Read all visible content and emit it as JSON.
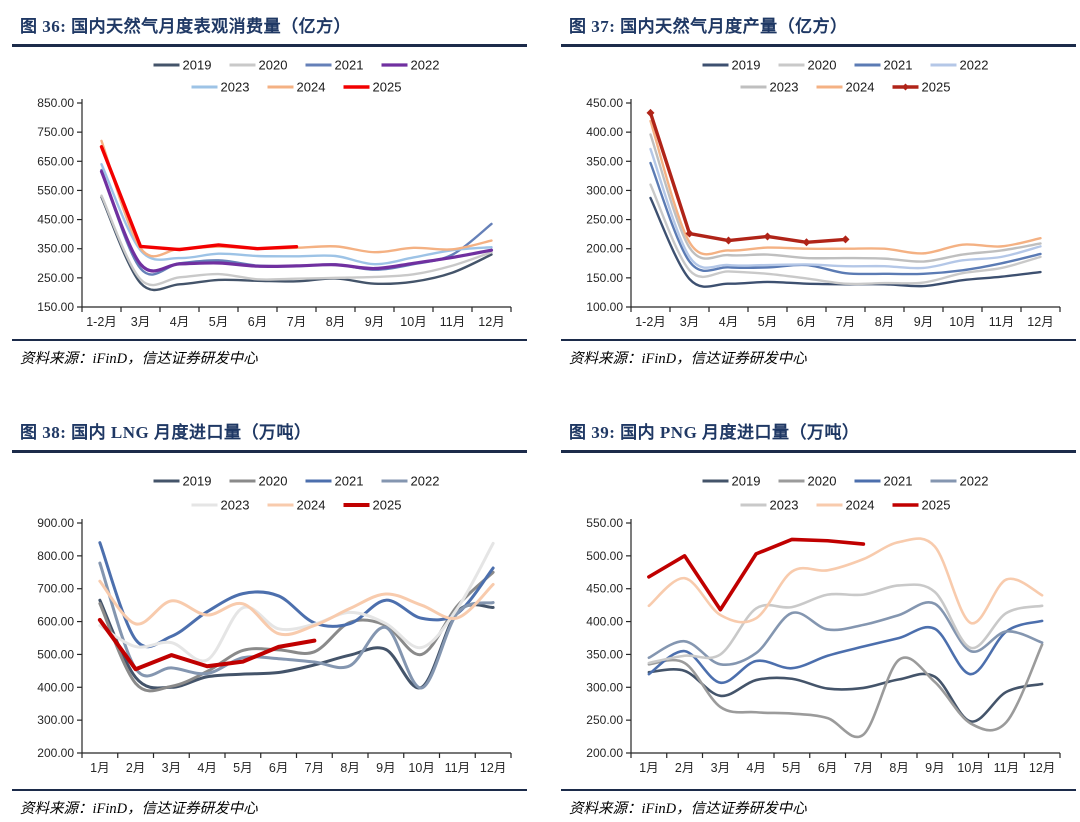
{
  "theme": {
    "background": "#FFFFFF",
    "title_color": "#1F3864",
    "rule_color": "#1C2B4A",
    "axis_color": "#262626",
    "legend_text_color": "#1A1A1A"
  },
  "chart_data": [
    {
      "id": "fig36",
      "type": "line",
      "title": "图 36: 国内天然气月度表观消费量（亿方）",
      "source": "资料来源：iFinD，信达证券研发中心",
      "xlabel": "",
      "ylabel": "",
      "ylim": [
        150,
        850
      ],
      "ytick_step": 100,
      "grid": false,
      "legend_position": "top",
      "categories": [
        "1-2月",
        "3月",
        "4月",
        "5月",
        "6月",
        "7月",
        "8月",
        "9月",
        "10月",
        "11月",
        "12月"
      ],
      "series": [
        {
          "name": "2019",
          "color": "#44546A",
          "width": 2.4,
          "smooth": true,
          "values": [
            527,
            232,
            228,
            243,
            240,
            238,
            248,
            230,
            237,
            268,
            330
          ]
        },
        {
          "name": "2020",
          "color": "#C9C9C9",
          "width": 2.4,
          "smooth": true,
          "values": [
            532,
            245,
            252,
            263,
            245,
            247,
            250,
            253,
            262,
            292,
            338
          ]
        },
        {
          "name": "2021",
          "color": "#6580B8",
          "width": 2.4,
          "smooth": true,
          "values": [
            620,
            282,
            300,
            310,
            292,
            290,
            296,
            278,
            297,
            330,
            435
          ]
        },
        {
          "name": "2022",
          "color": "#7030A0",
          "width": 3.2,
          "smooth": true,
          "values": [
            615,
            297,
            298,
            301,
            290,
            291,
            295,
            282,
            300,
            320,
            345
          ]
        },
        {
          "name": "2023",
          "color": "#9DC3E6",
          "width": 2.4,
          "smooth": true,
          "values": [
            640,
            345,
            318,
            333,
            325,
            324,
            325,
            297,
            320,
            345,
            355
          ]
        },
        {
          "name": "2024",
          "color": "#F4B183",
          "width": 2.4,
          "smooth": true,
          "values": [
            720,
            352,
            350,
            357,
            350,
            353,
            358,
            338,
            353,
            348,
            378
          ]
        },
        {
          "name": "2025",
          "color": "#F20000",
          "width": 3.4,
          "smooth": false,
          "values": [
            700,
            358,
            347,
            363,
            350,
            357
          ]
        }
      ]
    },
    {
      "id": "fig37",
      "type": "line",
      "title": "图 37: 国内天然气月度产量（亿方）",
      "source": "资料来源：iFinD，信达证券研发中心",
      "xlabel": "",
      "ylabel": "",
      "ylim": [
        100,
        450
      ],
      "ytick_step": 50,
      "grid": false,
      "legend_position": "top",
      "categories": [
        "1-2月",
        "3月",
        "4月",
        "5月",
        "6月",
        "7月",
        "8月",
        "9月",
        "10月",
        "11月",
        "12月"
      ],
      "series": [
        {
          "name": "2019",
          "color": "#3D5070",
          "width": 2.4,
          "smooth": true,
          "values": [
            287,
            148,
            140,
            143,
            140,
            139,
            139,
            136,
            146,
            152,
            160
          ]
        },
        {
          "name": "2020",
          "color": "#C9C9C9",
          "width": 2.4,
          "smooth": true,
          "values": [
            310,
            163,
            161,
            157,
            149,
            140,
            141,
            142,
            158,
            167,
            186
          ]
        },
        {
          "name": "2021",
          "color": "#5B7BB4",
          "width": 2.4,
          "smooth": true,
          "values": [
            347,
            178,
            168,
            168,
            172,
            158,
            157,
            157,
            163,
            175,
            191
          ]
        },
        {
          "name": "2022",
          "color": "#B4C7E7",
          "width": 2.4,
          "smooth": true,
          "values": [
            371,
            186,
            172,
            172,
            173,
            170,
            170,
            167,
            180,
            186,
            204
          ]
        },
        {
          "name": "2023",
          "color": "#BFBFBF",
          "width": 2.4,
          "smooth": true,
          "values": [
            396,
            202,
            189,
            190,
            184,
            184,
            183,
            178,
            190,
            197,
            209
          ]
        },
        {
          "name": "2024",
          "color": "#F4B183",
          "width": 2.4,
          "smooth": true,
          "values": [
            419,
            211,
            197,
            202,
            200,
            200,
            200,
            192,
            207,
            204,
            218
          ]
        },
        {
          "name": "2025",
          "color": "#B02418",
          "width": 3.4,
          "smooth": false,
          "marker": "diamond",
          "values": [
            433,
            226,
            214,
            221,
            211,
            216
          ]
        }
      ]
    },
    {
      "id": "fig38",
      "type": "line",
      "title": "图 38: 国内 LNG 月度进口量（万吨）",
      "source": "资料来源：iFinD，信达证券研发中心",
      "xlabel": "",
      "ylabel": "",
      "ylim": [
        200,
        900
      ],
      "ytick_step": 100,
      "grid": false,
      "legend_position": "top",
      "categories": [
        "1月",
        "2月",
        "3月",
        "4月",
        "5月",
        "6月",
        "7月",
        "8月",
        "9月",
        "10月",
        "11月",
        "12月"
      ],
      "series": [
        {
          "name": "2019",
          "color": "#44546A",
          "width": 3,
          "smooth": true,
          "values": [
            665,
            430,
            400,
            432,
            440,
            445,
            468,
            498,
            515,
            400,
            630,
            643
          ]
        },
        {
          "name": "2020",
          "color": "#8A8A8A",
          "width": 3,
          "smooth": true,
          "values": [
            655,
            412,
            403,
            448,
            512,
            514,
            508,
            598,
            588,
            500,
            648,
            750
          ]
        },
        {
          "name": "2021",
          "color": "#4C6FAD",
          "width": 3,
          "smooth": true,
          "values": [
            840,
            545,
            555,
            630,
            685,
            678,
            596,
            594,
            665,
            610,
            625,
            763
          ]
        },
        {
          "name": "2022",
          "color": "#8496B0",
          "width": 3,
          "smooth": true,
          "values": [
            778,
            457,
            459,
            442,
            490,
            487,
            477,
            466,
            582,
            398,
            626,
            658
          ]
        },
        {
          "name": "2023",
          "color": "#E5E5E5",
          "width": 3,
          "smooth": true,
          "values": [
            588,
            524,
            536,
            483,
            642,
            578,
            592,
            628,
            594,
            521,
            640,
            838
          ]
        },
        {
          "name": "2024",
          "color": "#F8CBAD",
          "width": 3,
          "smooth": true,
          "values": [
            723,
            593,
            663,
            620,
            654,
            563,
            588,
            640,
            684,
            650,
            611,
            713
          ]
        },
        {
          "name": "2025",
          "color": "#C00000",
          "width": 4,
          "smooth": false,
          "values": [
            605,
            455,
            498,
            464,
            478,
            523,
            542
          ]
        }
      ]
    },
    {
      "id": "fig39",
      "type": "line",
      "title": "图 39: 国内 PNG 月度进口量（万吨）",
      "source": "资料来源：iFinD，信达证券研发中心",
      "xlabel": "",
      "ylabel": "",
      "ylim": [
        200,
        550
      ],
      "ytick_step": 50,
      "grid": false,
      "legend_position": "top",
      "categories": [
        "1月",
        "2月",
        "3月",
        "4月",
        "5月",
        "6月",
        "7月",
        "8月",
        "9月",
        "10月",
        "11月",
        "12月"
      ],
      "series": [
        {
          "name": "2019",
          "color": "#44546A",
          "width": 2.6,
          "smooth": true,
          "values": [
            323,
            325,
            287,
            311,
            313,
            298,
            299,
            312,
            316,
            248,
            293,
            305
          ]
        },
        {
          "name": "2020",
          "color": "#9B9B9B",
          "width": 2.6,
          "smooth": true,
          "values": [
            335,
            337,
            270,
            262,
            260,
            253,
            228,
            342,
            308,
            245,
            247,
            365
          ]
        },
        {
          "name": "2021",
          "color": "#4C6FAD",
          "width": 2.6,
          "smooth": true,
          "values": [
            320,
            355,
            307,
            340,
            329,
            348,
            362,
            375,
            389,
            320,
            385,
            401
          ]
        },
        {
          "name": "2022",
          "color": "#8496B0",
          "width": 2.6,
          "smooth": true,
          "values": [
            345,
            370,
            335,
            352,
            413,
            388,
            395,
            410,
            427,
            355,
            385,
            368
          ]
        },
        {
          "name": "2023",
          "color": "#C9C9C9",
          "width": 2.6,
          "smooth": true,
          "values": [
            337,
            348,
            350,
            420,
            422,
            441,
            441,
            455,
            445,
            360,
            413,
            424
          ]
        },
        {
          "name": "2024",
          "color": "#F8CBAD",
          "width": 2.6,
          "smooth": true,
          "values": [
            424,
            466,
            410,
            405,
            476,
            478,
            495,
            521,
            514,
            398,
            464,
            440
          ]
        },
        {
          "name": "2025",
          "color": "#C00000",
          "width": 3.6,
          "smooth": false,
          "values": [
            468,
            500,
            418,
            503,
            525,
            523,
            518
          ]
        }
      ]
    }
  ]
}
